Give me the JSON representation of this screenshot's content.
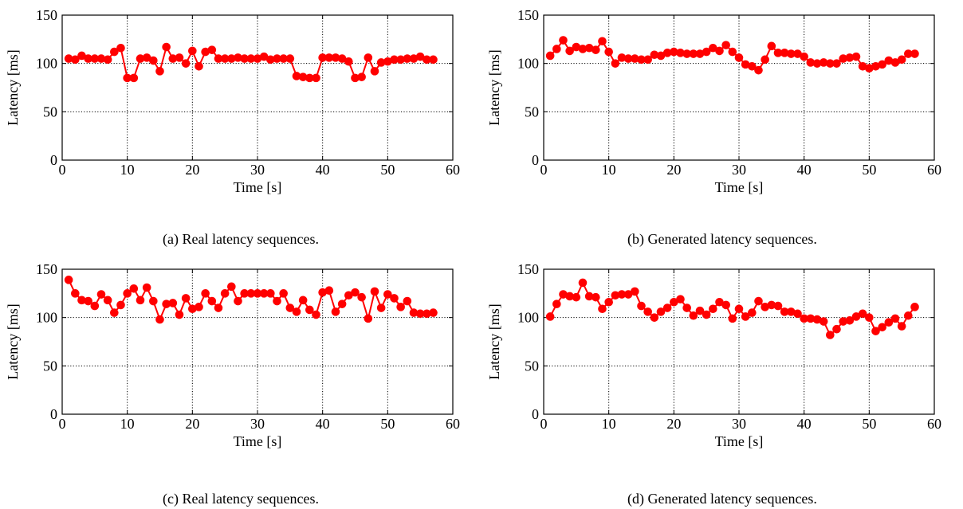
{
  "style": {
    "series_color": "#ff0000",
    "axis_color": "#000000",
    "grid": "dotted"
  },
  "chart_data": [
    {
      "type": "line",
      "caption": "(a) Real latency sequences.",
      "xlabel": "Time [s]",
      "ylabel": "Latency [ms]",
      "xlim": [
        0,
        60
      ],
      "ylim": [
        0,
        150
      ],
      "xticks": [
        0,
        10,
        20,
        30,
        40,
        50,
        60
      ],
      "yticks": [
        0,
        50,
        100,
        150
      ],
      "grid": true,
      "markers": true,
      "x": [
        1,
        2,
        3,
        4,
        5,
        6,
        7,
        8,
        9,
        10,
        11,
        12,
        13,
        14,
        15,
        16,
        17,
        18,
        19,
        20,
        21,
        22,
        23,
        24,
        25,
        26,
        27,
        28,
        29,
        30,
        31,
        32,
        33,
        34,
        35,
        36,
        37,
        38,
        39,
        40,
        41,
        42,
        43,
        44,
        45,
        46,
        47,
        48,
        49,
        50,
        51,
        52,
        53,
        54,
        55,
        56,
        57
      ],
      "series": [
        {
          "values": [
            105,
            104,
            108,
            105,
            105,
            105,
            104,
            112,
            116,
            85,
            85,
            105,
            106,
            103,
            92,
            117,
            105,
            106,
            100,
            113,
            97,
            112,
            114,
            105,
            105,
            105,
            106,
            105,
            105,
            105,
            107,
            104,
            105,
            105,
            105,
            87,
            86,
            85,
            85,
            106,
            106,
            106,
            105,
            102,
            85,
            86,
            106,
            92,
            101,
            102,
            104,
            104,
            105,
            105,
            107,
            104,
            104
          ]
        }
      ]
    },
    {
      "type": "line",
      "caption": "(b) Generated latency sequences.",
      "xlabel": "Time [s]",
      "ylabel": "Latency [ms]",
      "xlim": [
        0,
        60
      ],
      "ylim": [
        0,
        150
      ],
      "xticks": [
        0,
        10,
        20,
        30,
        40,
        50,
        60
      ],
      "yticks": [
        0,
        50,
        100,
        150
      ],
      "grid": true,
      "markers": true,
      "x": [
        1,
        2,
        3,
        4,
        5,
        6,
        7,
        8,
        9,
        10,
        11,
        12,
        13,
        14,
        15,
        16,
        17,
        18,
        19,
        20,
        21,
        22,
        23,
        24,
        25,
        26,
        27,
        28,
        29,
        30,
        31,
        32,
        33,
        34,
        35,
        36,
        37,
        38,
        39,
        40,
        41,
        42,
        43,
        44,
        45,
        46,
        47,
        48,
        49,
        50,
        51,
        52,
        53,
        54,
        55,
        56,
        57
      ],
      "series": [
        {
          "values": [
            108,
            115,
            124,
            113,
            117,
            115,
            116,
            114,
            123,
            112,
            100,
            106,
            105,
            105,
            104,
            104,
            109,
            108,
            111,
            112,
            111,
            110,
            110,
            110,
            112,
            116,
            113,
            119,
            112,
            106,
            99,
            97,
            93,
            104,
            118,
            111,
            111,
            110,
            110,
            107,
            101,
            100,
            101,
            100,
            100,
            105,
            106,
            107,
            97,
            95,
            97,
            99,
            103,
            101,
            104,
            110,
            110
          ]
        }
      ]
    },
    {
      "type": "line",
      "caption": "(c) Real latency sequences.",
      "xlabel": "Time [s]",
      "ylabel": "Latency [ms]",
      "xlim": [
        0,
        60
      ],
      "ylim": [
        0,
        150
      ],
      "xticks": [
        0,
        10,
        20,
        30,
        40,
        50,
        60
      ],
      "yticks": [
        0,
        50,
        100,
        150
      ],
      "grid": true,
      "markers": true,
      "x": [
        1,
        2,
        3,
        4,
        5,
        6,
        7,
        8,
        9,
        10,
        11,
        12,
        13,
        14,
        15,
        16,
        17,
        18,
        19,
        20,
        21,
        22,
        23,
        24,
        25,
        26,
        27,
        28,
        29,
        30,
        31,
        32,
        33,
        34,
        35,
        36,
        37,
        38,
        39,
        40,
        41,
        42,
        43,
        44,
        45,
        46,
        47,
        48,
        49,
        50,
        51,
        52,
        53,
        54,
        55,
        56,
        57
      ],
      "series": [
        {
          "values": [
            139,
            125,
            118,
            117,
            112,
            124,
            118,
            105,
            113,
            125,
            130,
            118,
            131,
            117,
            98,
            114,
            115,
            103,
            120,
            109,
            111,
            125,
            117,
            110,
            125,
            132,
            117,
            125,
            125,
            125,
            125,
            125,
            117,
            125,
            110,
            106,
            118,
            108,
            103,
            126,
            128,
            106,
            114,
            123,
            126,
            121,
            99,
            127,
            110,
            124,
            120,
            111,
            117,
            105,
            104,
            104,
            105
          ]
        }
      ]
    },
    {
      "type": "line",
      "caption": "(d) Generated latency sequences.",
      "xlabel": "Time [s]",
      "ylabel": "Latency [ms]",
      "xlim": [
        0,
        60
      ],
      "ylim": [
        0,
        150
      ],
      "xticks": [
        0,
        10,
        20,
        30,
        40,
        50,
        60
      ],
      "yticks": [
        0,
        50,
        100,
        150
      ],
      "grid": true,
      "markers": true,
      "x": [
        1,
        2,
        3,
        4,
        5,
        6,
        7,
        8,
        9,
        10,
        11,
        12,
        13,
        14,
        15,
        16,
        17,
        18,
        19,
        20,
        21,
        22,
        23,
        24,
        25,
        26,
        27,
        28,
        29,
        30,
        31,
        32,
        33,
        34,
        35,
        36,
        37,
        38,
        39,
        40,
        41,
        42,
        43,
        44,
        45,
        46,
        47,
        48,
        49,
        50,
        51,
        52,
        53,
        54,
        55,
        56,
        57
      ],
      "series": [
        {
          "values": [
            101,
            114,
            124,
            122,
            121,
            136,
            122,
            121,
            109,
            116,
            123,
            124,
            124,
            127,
            112,
            106,
            100,
            106,
            110,
            116,
            119,
            110,
            102,
            107,
            103,
            109,
            116,
            113,
            99,
            109,
            101,
            105,
            117,
            111,
            113,
            112,
            106,
            106,
            104,
            99,
            99,
            98,
            96,
            82,
            88,
            96,
            97,
            101,
            104,
            100,
            86,
            90,
            95,
            99,
            91,
            102,
            111
          ]
        }
      ]
    }
  ]
}
